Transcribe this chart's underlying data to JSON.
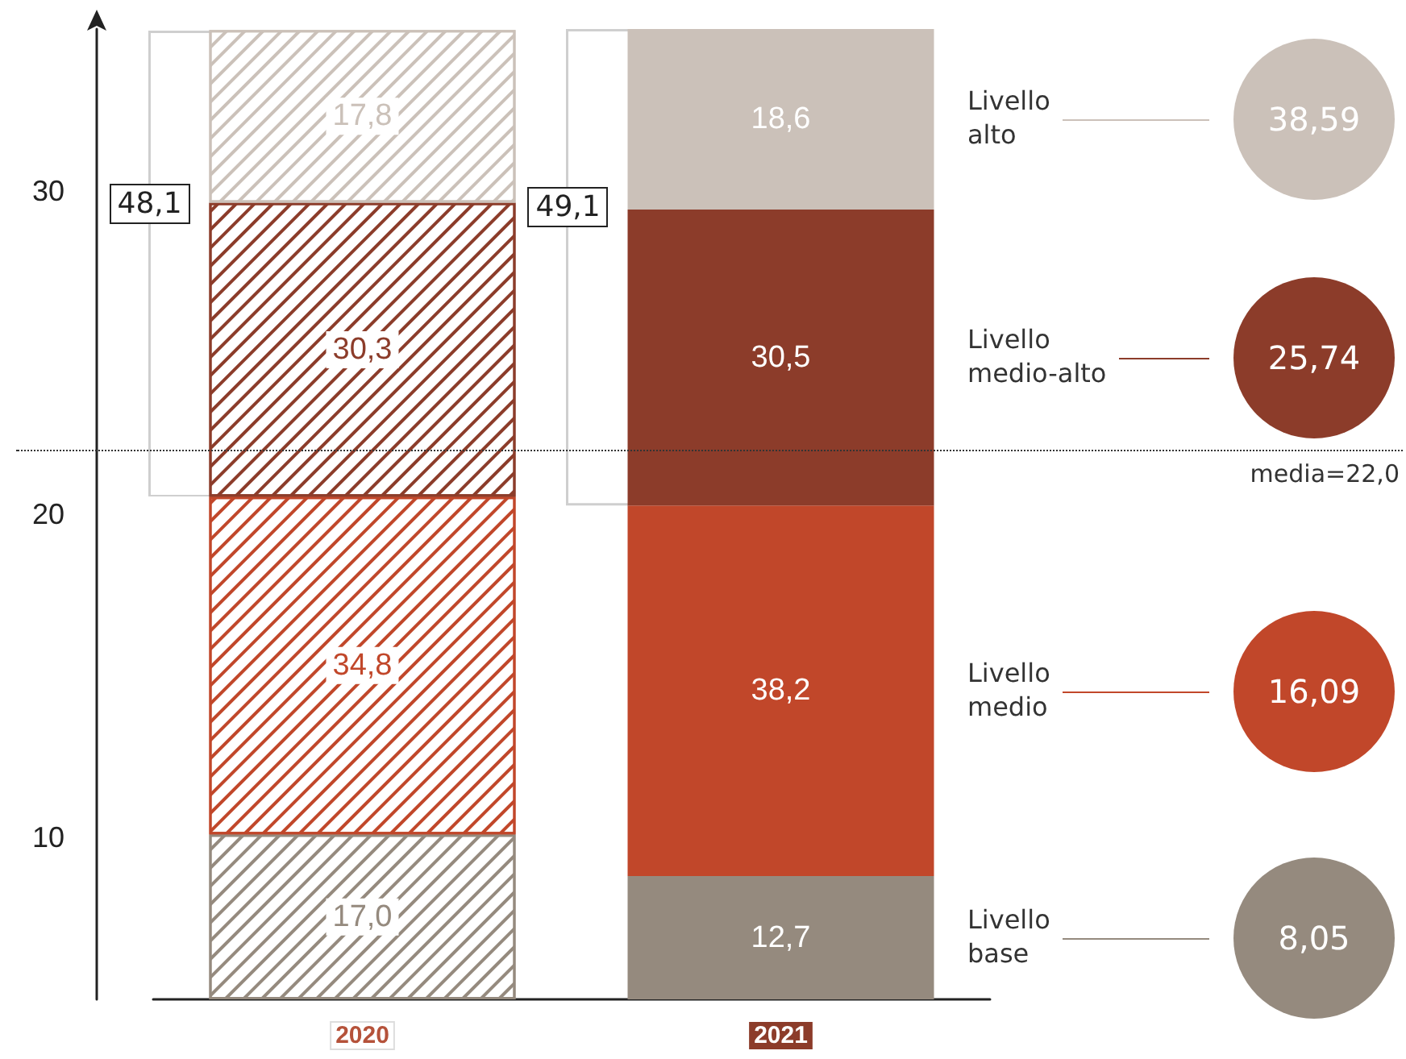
{
  "chart_data": {
    "type": "bar",
    "stacked": true,
    "categories": [
      "2020",
      "2021"
    ],
    "series": [
      {
        "name": "Livello base",
        "color": "#958a7e",
        "values": [
          17.0,
          12.7
        ],
        "value_labels": [
          "17,0",
          "12,7"
        ],
        "axis": "y2"
      },
      {
        "name": "Livello medio",
        "color": "#c1472a",
        "values": [
          34.8,
          38.2
        ],
        "value_labels": [
          "34,8",
          "38,2"
        ],
        "axis": "y2"
      },
      {
        "name": "Livello medio-alto",
        "color": "#8c3c2a",
        "values": [
          30.3,
          30.5
        ],
        "value_labels": [
          "30,3",
          "30,5"
        ],
        "axis": "y2"
      },
      {
        "name": "Livello alto",
        "color": "#cbc1b9",
        "values": [
          17.8,
          18.6
        ],
        "value_labels": [
          "17,8",
          "18,6"
        ],
        "axis": "y2"
      }
    ],
    "ylim": [
      5,
      35
    ],
    "yticks": [
      10,
      20,
      30
    ],
    "y2lim": [
      0,
      100
    ],
    "ref_lines": [
      {
        "axis": "y",
        "value": 22.0,
        "label": "media=22,0",
        "line_style": "dotted",
        "color": "#333333"
      }
    ],
    "annotations": [
      "48,1",
      "49,1",
      "8,05",
      "16,09",
      "25,74",
      "38,59"
    ]
  }
}
